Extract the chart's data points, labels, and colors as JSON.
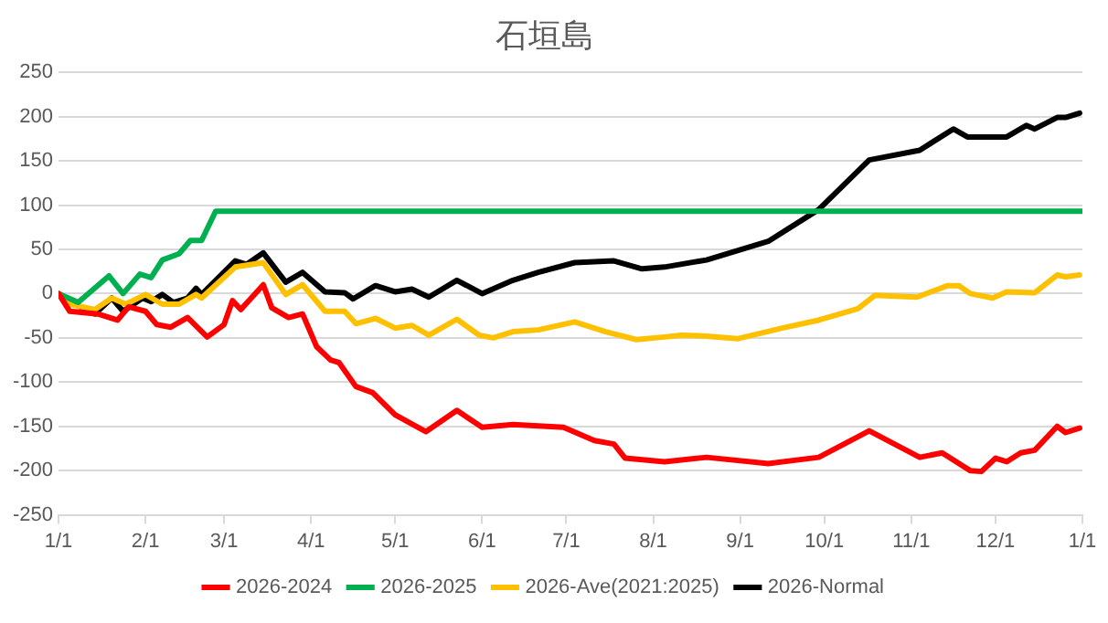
{
  "chart_data": {
    "type": "line",
    "title": "石垣島",
    "xlim": [
      "2026-01-01",
      "2027-01-01"
    ],
    "xticks": [
      {
        "value": "2026-01-01",
        "label": "1/1"
      },
      {
        "value": "2026-02-01",
        "label": "2/1"
      },
      {
        "value": "2026-03-01",
        "label": "3/1"
      },
      {
        "value": "2026-04-01",
        "label": "4/1"
      },
      {
        "value": "2026-05-01",
        "label": "5/1"
      },
      {
        "value": "2026-06-01",
        "label": "6/1"
      },
      {
        "value": "2026-07-01",
        "label": "7/1"
      },
      {
        "value": "2026-08-01",
        "label": "8/1"
      },
      {
        "value": "2026-09-01",
        "label": "9/1"
      },
      {
        "value": "2026-10-01",
        "label": "10/1"
      },
      {
        "value": "2026-11-01",
        "label": "11/1"
      },
      {
        "value": "2026-12-01",
        "label": "12/1"
      },
      {
        "value": "2027-01-01",
        "label": "1/1"
      }
    ],
    "ylim": [
      -250,
      250
    ],
    "yticks": [
      -250,
      -200,
      -150,
      -100,
      -50,
      0,
      50,
      100,
      150,
      200,
      250
    ],
    "grid": "y",
    "legend": "bottom",
    "marker": "none",
    "line_style": "solid",
    "series": [
      {
        "name": "2026-2024",
        "color": "#ff0000",
        "x": [
          "2026-01-01",
          "2026-01-05",
          "2026-01-15",
          "2026-01-22",
          "2026-01-26",
          "2026-02-01",
          "2026-02-05",
          "2026-02-10",
          "2026-02-16",
          "2026-02-23",
          "2026-03-01",
          "2026-03-04",
          "2026-03-07",
          "2026-03-15",
          "2026-03-18",
          "2026-03-24",
          "2026-03-29",
          "2026-04-03",
          "2026-04-08",
          "2026-04-11",
          "2026-04-17",
          "2026-04-23",
          "2026-05-01",
          "2026-05-12",
          "2026-05-23",
          "2026-06-01",
          "2026-06-12",
          "2026-06-30",
          "2026-07-11",
          "2026-07-18",
          "2026-07-22",
          "2026-08-05",
          "2026-08-20",
          "2026-09-11",
          "2026-09-29",
          "2026-10-17",
          "2026-11-04",
          "2026-11-12",
          "2026-11-22",
          "2026-11-26",
          "2026-12-01",
          "2026-12-05",
          "2026-12-10",
          "2026-12-15",
          "2026-12-23",
          "2026-12-26",
          "2026-12-31"
        ],
        "values": [
          0,
          -20,
          -23,
          -30,
          -15,
          -20,
          -35,
          -38,
          -27,
          -49,
          -35,
          -8,
          -18,
          10,
          -16,
          -27,
          -23,
          -60,
          -75,
          -78,
          -105,
          -112,
          -137,
          -156,
          -132,
          -151,
          -148,
          -151,
          -166,
          -170,
          -186,
          -190,
          -185,
          -192,
          -185,
          -155,
          -185,
          -180,
          -200,
          -201,
          -186,
          -190,
          -180,
          -177,
          -150,
          -157,
          -152
        ]
      },
      {
        "name": "2026-2025",
        "color": "#00b050",
        "x": [
          "2026-01-01",
          "2026-01-08",
          "2026-01-19",
          "2026-01-24",
          "2026-01-30",
          "2026-02-03",
          "2026-02-07",
          "2026-02-13",
          "2026-02-17",
          "2026-02-21",
          "2026-02-26",
          "2027-01-01"
        ],
        "values": [
          0,
          -10,
          20,
          0,
          22,
          18,
          38,
          45,
          60,
          60,
          93,
          93
        ]
      },
      {
        "name": "2026-Ave(2021:2025)",
        "color": "#ffc000",
        "x": [
          "2026-01-01",
          "2026-01-05",
          "2026-01-14",
          "2026-01-20",
          "2026-01-25",
          "2026-02-01",
          "2026-02-07",
          "2026-02-13",
          "2026-02-19",
          "2026-02-21",
          "2026-03-05",
          "2026-03-15",
          "2026-03-23",
          "2026-03-29",
          "2026-04-06",
          "2026-04-13",
          "2026-04-17",
          "2026-04-24",
          "2026-05-01",
          "2026-05-07",
          "2026-05-13",
          "2026-05-23",
          "2026-05-31",
          "2026-06-05",
          "2026-06-12",
          "2026-06-21",
          "2026-07-04",
          "2026-07-15",
          "2026-07-26",
          "2026-08-05",
          "2026-08-11",
          "2026-08-20",
          "2026-08-31",
          "2026-09-16",
          "2026-09-29",
          "2026-10-13",
          "2026-10-19",
          "2026-11-03",
          "2026-11-14",
          "2026-11-18",
          "2026-11-22",
          "2026-11-30",
          "2026-12-05",
          "2026-12-15",
          "2026-12-23",
          "2026-12-26",
          "2026-12-31"
        ],
        "values": [
          0,
          -12,
          -18,
          -5,
          -12,
          -1,
          -12,
          -12,
          -1,
          -5,
          30,
          35,
          -1,
          10,
          -20,
          -20,
          -34,
          -28,
          -39,
          -36,
          -47,
          -29,
          -47,
          -50,
          -43,
          -41,
          -32,
          -43,
          -52,
          -49,
          -47,
          -48,
          -51,
          -39,
          -30,
          -17,
          -2,
          -4,
          9,
          9,
          0,
          -5,
          2,
          1,
          21,
          19,
          21
        ]
      },
      {
        "name": "2026-Normal",
        "color": "#000000",
        "x": [
          "2026-01-01",
          "2026-01-05",
          "2026-01-14",
          "2026-01-20",
          "2026-01-24",
          "2026-01-31",
          "2026-02-03",
          "2026-02-07",
          "2026-02-11",
          "2026-02-16",
          "2026-02-19",
          "2026-02-21",
          "2026-03-05",
          "2026-03-09",
          "2026-03-15",
          "2026-03-23",
          "2026-03-29",
          "2026-04-06",
          "2026-04-13",
          "2026-04-16",
          "2026-04-24",
          "2026-05-01",
          "2026-05-07",
          "2026-05-13",
          "2026-05-23",
          "2026-06-01",
          "2026-06-12",
          "2026-06-21",
          "2026-07-04",
          "2026-07-18",
          "2026-07-28",
          "2026-08-05",
          "2026-08-20",
          "2026-09-11",
          "2026-09-29",
          "2026-10-17",
          "2026-11-04",
          "2026-11-16",
          "2026-11-21",
          "2026-11-29",
          "2026-12-05",
          "2026-12-12",
          "2026-12-15",
          "2026-12-23",
          "2026-12-26",
          "2026-12-31"
        ],
        "values": [
          0,
          -9,
          -23,
          -5,
          -20,
          -5,
          -9,
          -1,
          -10,
          -5,
          6,
          -1,
          37,
          33,
          46,
          13,
          24,
          2,
          1,
          -6,
          9,
          2,
          5,
          -4,
          15,
          0,
          15,
          24,
          35,
          37,
          28,
          30,
          38,
          59,
          95,
          151,
          162,
          186,
          177,
          177,
          177,
          190,
          186,
          199,
          199,
          204
        ]
      }
    ]
  }
}
